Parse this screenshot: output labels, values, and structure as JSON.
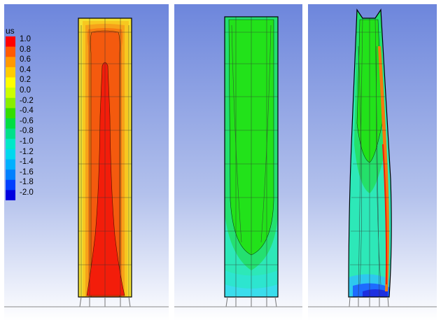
{
  "legend": {
    "title": "us",
    "labels": [
      "1.0",
      "0.8",
      "0.6",
      "0.4",
      "0.2",
      "0.0",
      "-0.2",
      "-0.4",
      "-0.6",
      "-0.8",
      "-1.0",
      "-1.2",
      "-1.4",
      "-1.6",
      "-1.8",
      "-2.0"
    ],
    "colors": [
      "#ff0000",
      "#ff5a00",
      "#ff9900",
      "#ffcc00",
      "#ffff00",
      "#ccff00",
      "#88ee00",
      "#33dd00",
      "#00dd44",
      "#00e08a",
      "#00e8c8",
      "#00d8ee",
      "#00b0ff",
      "#0080ff",
      "#0040ff",
      "#0000e0"
    ]
  },
  "panels": [
    {
      "name": "left-panel"
    },
    {
      "name": "middle-panel"
    },
    {
      "name": "right-panel"
    }
  ],
  "colors": {
    "background_top": "#6d86dc",
    "background_bottom": "#ffffff",
    "red_core": "#f31d0a",
    "orange_zone": "#f77a10",
    "yellow_wall": "#f3e233",
    "green_core": "#22e21a",
    "cyan_base": "#2de8b8",
    "ground_line": "#8a8a8a"
  }
}
